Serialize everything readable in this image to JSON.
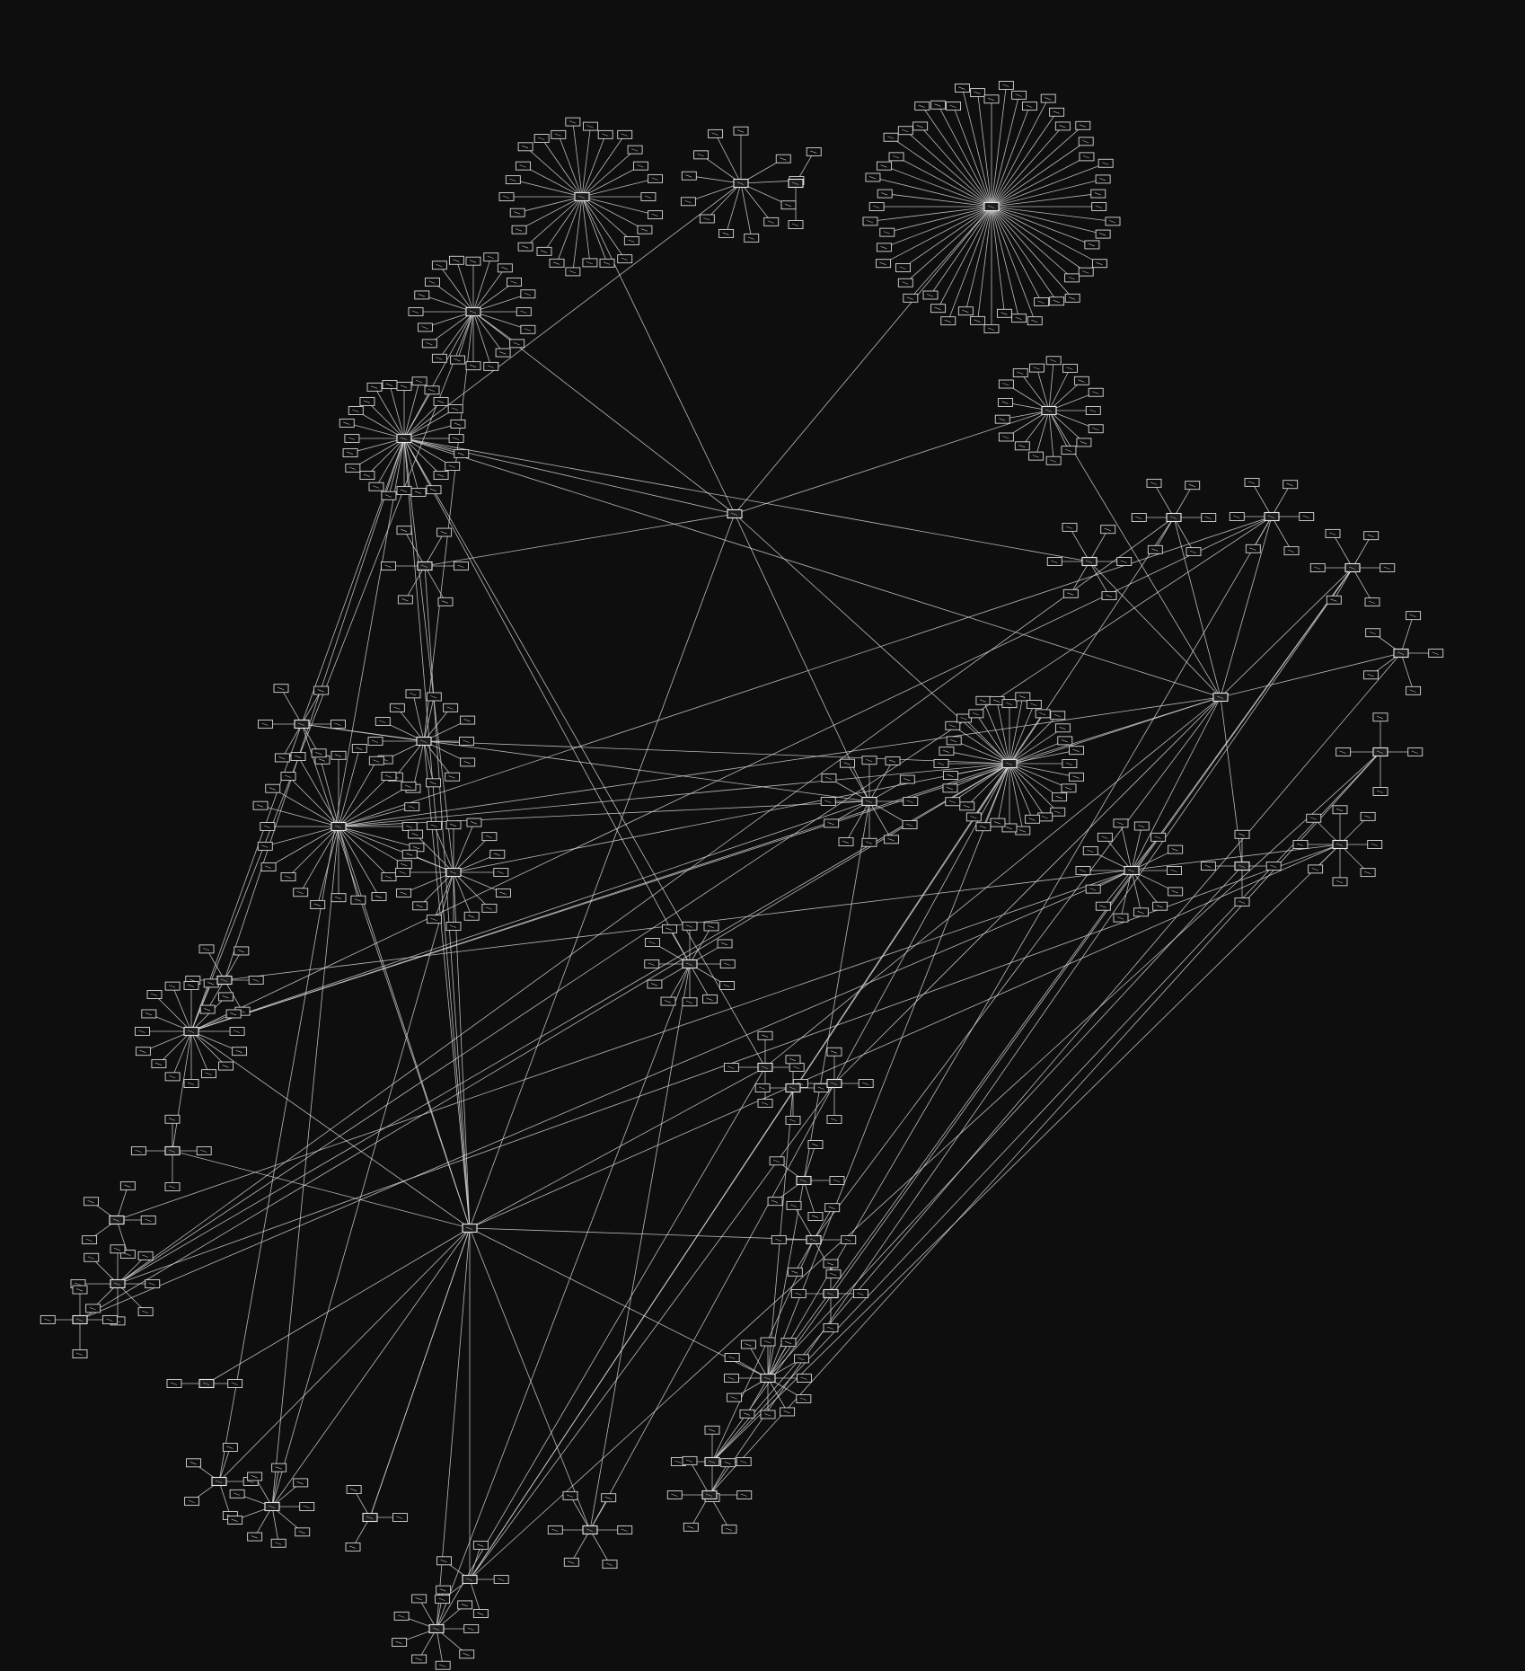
{
  "graph": {
    "kind": "force-directed node-link diagram",
    "background_color": "#0e0e0e",
    "edge_color": "#d9d9d9",
    "node_border_color": "#d6d6d6",
    "labels": "none legible",
    "hub_count": 48
  }
}
